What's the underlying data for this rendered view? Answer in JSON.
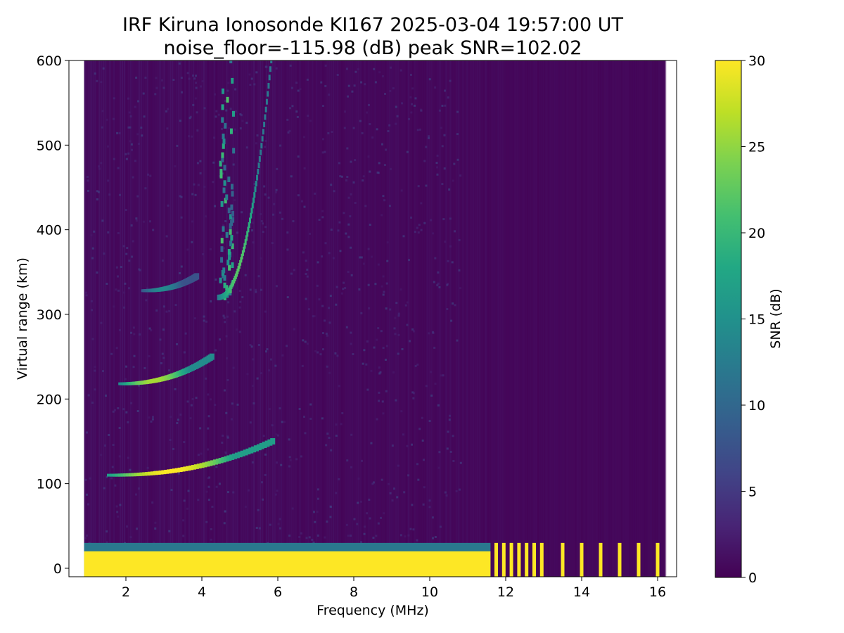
{
  "chart_data": {
    "type": "heatmap",
    "title_line1": "IRF Kiruna Ionosonde KI167 2025-03-04 19:57:00  UT",
    "title_line2": "noise_floor=-115.98 (dB) peak SNR=102.02",
    "xlabel": "Frequency (MHz)",
    "ylabel": "Virtual range (km)",
    "colorbar_label": "SNR (dB)",
    "xlim": [
      0.5,
      16.5
    ],
    "ylim": [
      -10,
      600
    ],
    "clim": [
      0,
      30
    ],
    "colormap": "viridis",
    "x_ticks": [
      2,
      4,
      6,
      8,
      10,
      12,
      14,
      16
    ],
    "y_ticks": [
      0,
      100,
      200,
      300,
      400,
      500,
      600
    ],
    "colorbar_ticks": [
      0,
      5,
      10,
      15,
      20,
      25,
      30
    ],
    "data_coverage_mhz": [
      0.9,
      16.2
    ],
    "traces": [
      {
        "name": "E-layer echo",
        "f_start": 1.5,
        "f_end": 5.8,
        "range_start": 110,
        "range_end": 150,
        "snr": 30
      },
      {
        "name": "E-layer second hop",
        "f_start": 1.8,
        "f_end": 4.2,
        "range_start": 218,
        "range_end": 250,
        "snr": 26
      },
      {
        "name": "third hop",
        "f_start": 2.4,
        "f_end": 3.8,
        "range_start": 328,
        "range_end": 345,
        "snr": 14
      },
      {
        "name": "F-layer cusp",
        "f_start": 4.4,
        "f_end": 5.8,
        "range_start": 320,
        "range_end": 600,
        "snr": 22
      }
    ],
    "ground_clutter": {
      "range_max": 30,
      "f_end": 11.6,
      "snr": 30
    },
    "interference_lines_mhz": [
      11.75,
      11.95,
      12.15,
      12.35,
      12.55,
      12.75,
      12.95,
      13.5,
      14.0,
      14.5,
      15.0,
      15.5,
      16.0
    ]
  }
}
